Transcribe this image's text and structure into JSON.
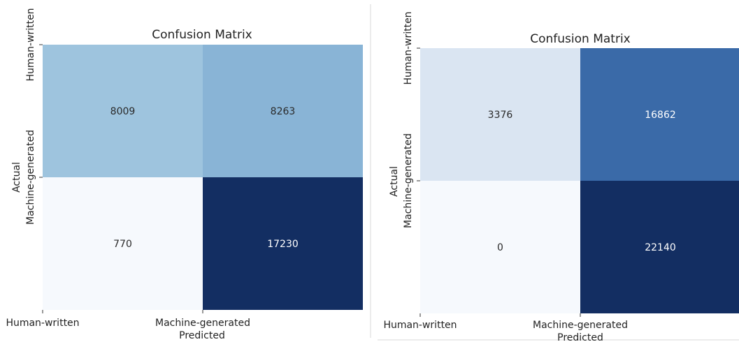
{
  "chart_data": [
    {
      "type": "heatmap",
      "title": "Confusion Matrix",
      "xlabel": "Predicted",
      "ylabel": "Actual",
      "x_categories": [
        "Human-written",
        "Machine-generated"
      ],
      "y_categories": [
        "Human-written",
        "Machine-generated"
      ],
      "values": [
        [
          8009,
          8263
        ],
        [
          770,
          17230
        ]
      ],
      "colormap": "Blues",
      "cell_colors": [
        [
          "#9ec4de",
          "#89b4d6"
        ],
        [
          "#f6f9fd",
          "#132e62"
        ]
      ],
      "text_colors": [
        [
          "#2a2a2a",
          "#2a2a2a"
        ],
        [
          "#2a2a2a",
          "#ffffff"
        ]
      ]
    },
    {
      "type": "heatmap",
      "title": "Confusion Matrix",
      "xlabel": "Predicted",
      "ylabel": "Actual",
      "x_categories": [
        "Human-written",
        "Machine-generated"
      ],
      "y_categories": [
        "Human-written",
        "Machine-generated"
      ],
      "values": [
        [
          3376,
          16862
        ],
        [
          0,
          22140
        ]
      ],
      "colormap": "Blues",
      "cell_colors": [
        [
          "#dae5f2",
          "#3a6aa8"
        ],
        [
          "#f6f9fd",
          "#132e62"
        ]
      ],
      "text_colors": [
        [
          "#2a2a2a",
          "#ffffff"
        ],
        [
          "#2a2a2a",
          "#ffffff"
        ]
      ]
    }
  ]
}
